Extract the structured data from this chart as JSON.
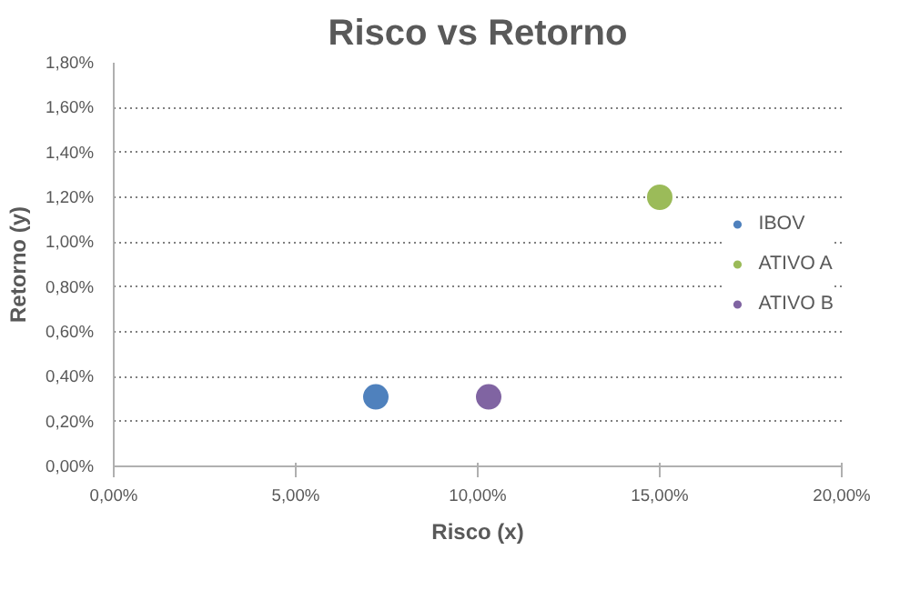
{
  "chart_data": {
    "type": "scatter",
    "title": "Risco vs Retorno",
    "xlabel": "Risco (x)",
    "ylabel": "Retorno (y)",
    "series": [
      {
        "name": "IBOV",
        "color": "#4f81bd",
        "x": [
          7.2
        ],
        "values": [
          0.31
        ]
      },
      {
        "name": "ATIVO A",
        "color": "#9bbb59",
        "x": [
          15.0
        ],
        "values": [
          1.2
        ]
      },
      {
        "name": "ATIVO B",
        "color": "#8064a2",
        "x": [
          10.3
        ],
        "values": [
          0.31
        ]
      }
    ],
    "xlim": [
      0,
      20
    ],
    "ylim": [
      0,
      1.8
    ],
    "xticks": [
      {
        "value": 0,
        "label": "0,00%"
      },
      {
        "value": 5,
        "label": "5,00%"
      },
      {
        "value": 10,
        "label": "10,00%"
      },
      {
        "value": 15,
        "label": "15,00%"
      },
      {
        "value": 20,
        "label": "20,00%"
      }
    ],
    "yticks": [
      {
        "value": 0,
        "label": "0,00%"
      },
      {
        "value": 0.2,
        "label": "0,20%"
      },
      {
        "value": 0.4,
        "label": "0,40%"
      },
      {
        "value": 0.6,
        "label": "0,60%"
      },
      {
        "value": 0.8,
        "label": "0,80%"
      },
      {
        "value": 1.0,
        "label": "1,00%"
      },
      {
        "value": 1.2,
        "label": "1,20%"
      },
      {
        "value": 1.4,
        "label": "1,40%"
      },
      {
        "value": 1.6,
        "label": "1,60%"
      },
      {
        "value": 1.8,
        "label": "1,80%"
      }
    ],
    "grid": "y",
    "legend": "right",
    "marker": "circle"
  }
}
